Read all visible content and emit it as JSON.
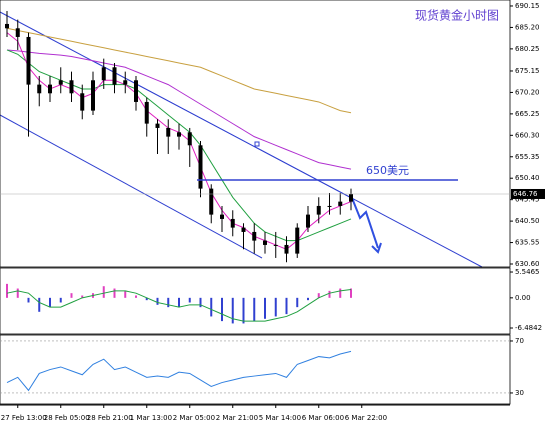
{
  "chart_data": [
    {
      "type": "candlestick",
      "title": "现货黄金小时图",
      "categories": [
        null,
        "27 Feb 13:00",
        null,
        null,
        null,
        "28 Feb 05:00",
        null,
        null,
        null,
        "28 Feb 21:00",
        null,
        null,
        null,
        "1 Mar 13:00",
        null,
        null,
        null,
        "2 Mar 05:00",
        null,
        null,
        null,
        "2 Mar 21:00",
        null,
        null,
        null,
        "5 Mar 14:00",
        null,
        null,
        null,
        "6 Mar 06:00",
        null,
        null,
        null,
        "6 Mar 22:00"
      ],
      "open": [
        686,
        685,
        683,
        672,
        670,
        672,
        673,
        670,
        666,
        673,
        676,
        672,
        673,
        668,
        663,
        662,
        660,
        661,
        658,
        648,
        642,
        641,
        639,
        638,
        636,
        635,
        635,
        633,
        639,
        642,
        644,
        644,
        645,
        null
      ],
      "high": [
        689,
        687,
        684,
        674,
        674,
        676,
        675,
        672,
        675,
        678,
        677,
        675,
        674,
        669,
        664,
        664,
        663,
        662,
        659,
        649,
        644,
        643,
        640,
        640,
        638,
        638,
        637,
        640,
        644,
        646,
        647,
        647,
        648,
        null
      ],
      "low": [
        683,
        680,
        660,
        667,
        668,
        670,
        668,
        664,
        665,
        671,
        670,
        670,
        666,
        660,
        656,
        656,
        657,
        653,
        646,
        640,
        638,
        637,
        634,
        633,
        633,
        632,
        631,
        632,
        638,
        640,
        642,
        642,
        643,
        null
      ],
      "close": [
        685,
        683,
        672,
        670,
        672,
        673,
        670,
        666,
        673,
        676,
        672,
        673,
        668,
        663,
        662,
        660,
        661,
        658,
        648,
        642,
        641,
        639,
        638,
        636,
        635,
        635,
        633,
        639,
        642,
        644,
        644,
        645,
        646.76,
        null
      ],
      "color": "#000000",
      "series": [
        {
          "color": "#c8a040",
          "values": [
            685,
            684.5,
            684,
            683.5,
            683,
            682.5,
            682,
            681.5,
            681,
            680.5,
            680,
            679.5,
            679,
            678.5,
            678,
            677.5,
            677,
            676.5,
            676,
            675,
            674,
            673,
            672,
            671,
            670.5,
            670,
            669.5,
            669,
            668.5,
            668,
            667,
            666,
            665.5,
            null
          ]
        },
        {
          "color": "#b030d0",
          "values": [
            680,
            679.8,
            679.5,
            679.2,
            679,
            678.8,
            678.5,
            678,
            677.5,
            677,
            676.5,
            676,
            675,
            674,
            673,
            672,
            670.5,
            669,
            667.5,
            666,
            664.5,
            663,
            661.5,
            660,
            659,
            658,
            657,
            656,
            655,
            654,
            653.5,
            653,
            652.5,
            null
          ]
        },
        {
          "color": "#20a040",
          "values": [
            680,
            679,
            677,
            675,
            674,
            673,
            672,
            671,
            671,
            672,
            672,
            672,
            671,
            669,
            667,
            665,
            663,
            661,
            658,
            654,
            650,
            646,
            643,
            640,
            638,
            637,
            636,
            636,
            637,
            638,
            639,
            640,
            641,
            null
          ]
        },
        {
          "color": "#e020c0",
          "values": [
            684,
            682,
            676,
            673,
            671,
            672,
            671,
            669,
            670,
            673,
            673,
            672,
            670,
            666,
            664,
            662,
            661,
            659,
            653,
            647,
            643,
            640,
            639,
            637,
            636,
            635,
            634,
            636,
            639,
            641,
            643,
            644,
            645,
            null
          ]
        }
      ],
      "ylim": [
        629.91,
        691.53
      ],
      "yticks": [
        690.15,
        {
          "value": 685.2,
          "label": "685.20"
        },
        680.25,
        675.15,
        {
          "value": 670.2,
          "label": "670.20"
        },
        665.25,
        {
          "value": 660.3,
          "label": "660.30"
        },
        655.35,
        {
          "value": 650.4,
          "label": "650.40"
        },
        645.45,
        {
          "value": 640.5,
          "label": "640.50"
        },
        635.55,
        {
          "value": 630.6,
          "label": "630.60"
        }
      ],
      "last_price": 646.76,
      "level": {
        "value": 650,
        "label": "650美元"
      }
    },
    {
      "type": "bar",
      "values": [
        3,
        2,
        -1,
        -3,
        -2,
        -1,
        1,
        0.5,
        1,
        2.5,
        2,
        1.5,
        0.5,
        -0.5,
        -1.5,
        -2,
        -2,
        -1,
        -2,
        -4,
        -5,
        -5.5,
        -5.5,
        -5,
        -4.5,
        -4,
        -3.5,
        -2,
        -0.5,
        1,
        1.5,
        2,
        2,
        null
      ],
      "colors": {
        "positive": "#e040c0",
        "negative": "#3040d0"
      },
      "series": [
        {
          "color": "#20a040",
          "values": [
            1,
            1.5,
            1,
            -1,
            -2,
            -2,
            -1,
            0,
            0.5,
            1,
            1.5,
            1.5,
            1,
            0,
            -1,
            -1.5,
            -2,
            -1.5,
            -1.5,
            -2.5,
            -3.5,
            -4.5,
            -5,
            -5,
            -5,
            -4.5,
            -4,
            -3,
            -1.5,
            0,
            1,
            1.5,
            1.8,
            null
          ]
        }
      ],
      "ylim": [
        -7.77,
        6.41
      ],
      "yticks": [
        5.5465,
        {
          "value": 0,
          "label": "0.00"
        },
        -6.4842
      ]
    },
    {
      "type": "line",
      "series": [
        {
          "color": "#3080e0",
          "values": [
            38,
            42,
            32,
            45,
            48,
            50,
            47,
            44,
            52,
            56,
            48,
            50,
            46,
            42,
            43,
            42,
            46,
            45,
            40,
            35,
            38,
            40,
            42,
            43,
            44,
            45,
            42,
            52,
            55,
            58,
            57,
            60,
            62,
            null
          ]
        }
      ],
      "ylim": [
        21.5,
        74.6
      ],
      "yticks": [
        70,
        30
      ]
    }
  ]
}
